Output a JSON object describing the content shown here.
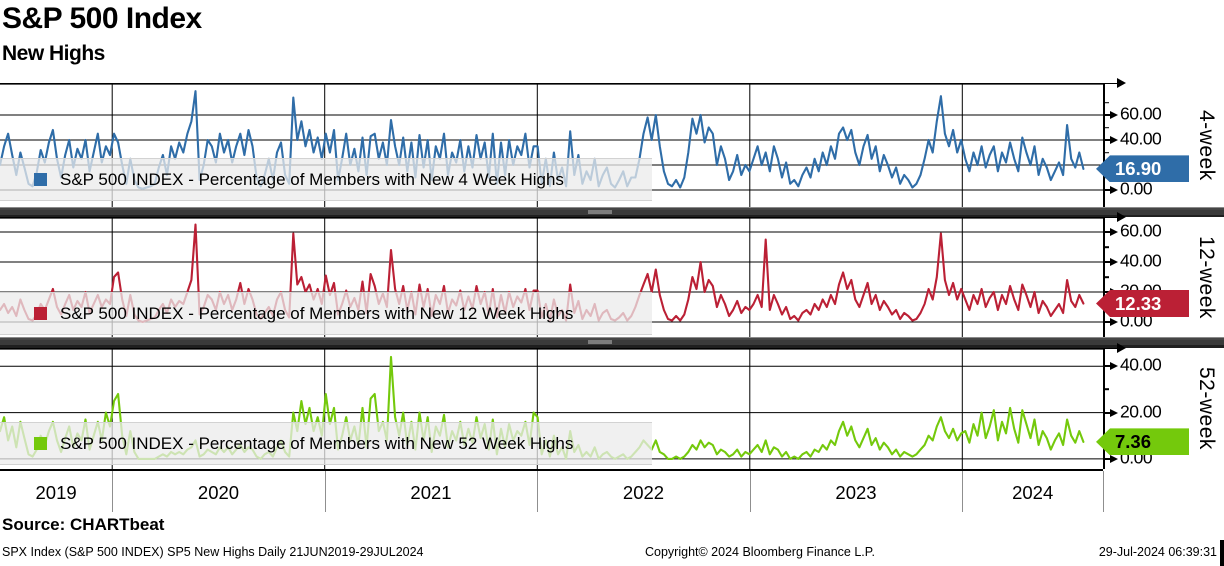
{
  "header": {
    "title": "S&P 500 Index",
    "subtitle": "New Highs"
  },
  "footer": {
    "source": "Source: CHARTbeat",
    "left": "SPX Index (S&P 500 INDEX) SP5 New Highs  Daily 21JUN2019-29JUL2024",
    "center": "Copyright© 2024 Bloomberg Finance L.P.",
    "right": "29-Jul-2024 06:39:31"
  },
  "chart_data": {
    "type": "line",
    "title": "S&P 500 Index",
    "subtitle": "New Highs",
    "x_axis": {
      "xlim": [
        2019.472,
        2024.662
      ],
      "start_year": 2019.472,
      "step_days": 7,
      "tick_years": [
        2020,
        2021,
        2022,
        2023,
        2024
      ],
      "labels": [
        "2019",
        "2020",
        "2021",
        "2022",
        "2023",
        "2024"
      ],
      "range_label": "Daily 21JUN2019-29JUL2024"
    },
    "panels": [
      {
        "name": "4-week",
        "side_label": "4-week",
        "legend": "S&P 500 INDEX - Percentage of Members with New 4 Week Highs",
        "color": "#2f6da8",
        "badge_text_color": "#ffffff",
        "last_value": 16.9,
        "last_value_label": "16.90",
        "ylim": [
          -13.6,
          85.6
        ],
        "yticks": [
          0,
          20,
          40,
          60
        ],
        "values": [
          20,
          35,
          45,
          28,
          12,
          30,
          18,
          5,
          3,
          14,
          32,
          22,
          38,
          48,
          25,
          10,
          28,
          40,
          18,
          33,
          25,
          40,
          15,
          30,
          45,
          22,
          35,
          28,
          45,
          38,
          20,
          5,
          25,
          8,
          2,
          1,
          2,
          3,
          5,
          18,
          28,
          12,
          35,
          25,
          38,
          30,
          45,
          55,
          79,
          8,
          20,
          40,
          35,
          22,
          45,
          30,
          40,
          22,
          35,
          45,
          28,
          48,
          35,
          10,
          3,
          12,
          25,
          8,
          30,
          38,
          12,
          5,
          74,
          40,
          55,
          35,
          48,
          30,
          42,
          25,
          45,
          30,
          48,
          8,
          25,
          45,
          20,
          33,
          15,
          42,
          12,
          43,
          45,
          25,
          38,
          20,
          56,
          35,
          20,
          42,
          15,
          38,
          10,
          44,
          18,
          40,
          8,
          35,
          25,
          45,
          12,
          30,
          22,
          40,
          15,
          35,
          18,
          44,
          25,
          38,
          10,
          45,
          5,
          38,
          12,
          40,
          20,
          35,
          28,
          45,
          18,
          35,
          35,
          5,
          25,
          3,
          30,
          8,
          18,
          3,
          47,
          12,
          28,
          5,
          15,
          8,
          25,
          3,
          12,
          18,
          5,
          2,
          8,
          15,
          3,
          10,
          10,
          25,
          45,
          58,
          40,
          60,
          35,
          15,
          5,
          3,
          8,
          2,
          10,
          30,
          57,
          45,
          60,
          38,
          50,
          45,
          20,
          35,
          25,
          8,
          15,
          28,
          12,
          20,
          15,
          25,
          35,
          20,
          30,
          15,
          35,
          25,
          10,
          22,
          5,
          8,
          3,
          12,
          18,
          10,
          25,
          15,
          30,
          20,
          35,
          25,
          45,
          50,
          40,
          48,
          30,
          20,
          35,
          44,
          25,
          35,
          15,
          28,
          20,
          10,
          18,
          5,
          12,
          8,
          2,
          5,
          12,
          25,
          40,
          30,
          55,
          75,
          45,
          35,
          48,
          30,
          40,
          25,
          15,
          30,
          20,
          35,
          18,
          28,
          35,
          15,
          30,
          22,
          38,
          25,
          15,
          42,
          30,
          20,
          35,
          12,
          25,
          18,
          8,
          15,
          22,
          12,
          52,
          25,
          18,
          30,
          16.9
        ]
      },
      {
        "name": "12-week",
        "side_label": "12-week",
        "legend": "S&P 500 INDEX - Percentage of Members with New 12 Week Highs",
        "color": "#bb2035",
        "badge_text_color": "#ffffff",
        "last_value": 12.33,
        "last_value_label": "12.33",
        "ylim": [
          -10,
          70
        ],
        "yticks": [
          0,
          20,
          40,
          60
        ],
        "values": [
          8,
          12,
          6,
          10,
          4,
          15,
          8,
          2,
          1,
          5,
          12,
          8,
          15,
          22,
          10,
          5,
          12,
          18,
          8,
          14,
          10,
          20,
          6,
          12,
          18,
          10,
          15,
          12,
          30,
          33,
          15,
          4,
          18,
          5,
          1,
          0,
          1,
          2,
          3,
          8,
          12,
          6,
          15,
          10,
          14,
          12,
          20,
          28,
          65,
          5,
          10,
          18,
          15,
          8,
          20,
          12,
          18,
          8,
          15,
          26,
          12,
          22,
          15,
          5,
          2,
          6,
          10,
          4,
          15,
          20,
          8,
          3,
          59,
          25,
          30,
          20,
          25,
          15,
          22,
          12,
          31,
          18,
          26,
          5,
          12,
          21,
          10,
          16,
          8,
          27,
          6,
          32,
          24,
          12,
          19,
          10,
          48,
          22,
          12,
          24,
          8,
          20,
          5,
          25,
          10,
          22,
          4,
          18,
          12,
          24,
          6,
          15,
          11,
          21,
          8,
          17,
          9,
          24,
          12,
          20,
          5,
          22,
          3,
          18,
          6,
          20,
          10,
          17,
          13,
          22,
          8,
          21,
          21,
          3,
          12,
          1,
          15,
          4,
          8,
          1,
          25,
          6,
          14,
          2,
          8,
          4,
          12,
          1,
          6,
          8,
          2,
          1,
          3,
          6,
          1,
          4,
          10,
          18,
          25,
          32,
          20,
          35,
          18,
          8,
          2,
          1,
          4,
          1,
          5,
          15,
          30,
          22,
          40,
          20,
          28,
          24,
          10,
          18,
          12,
          4,
          8,
          14,
          6,
          10,
          8,
          12,
          18,
          10,
          55,
          8,
          18,
          12,
          5,
          10,
          2,
          4,
          1,
          6,
          8,
          5,
          12,
          8,
          15,
          10,
          18,
          12,
          25,
          33,
          22,
          28,
          15,
          10,
          18,
          26,
          12,
          18,
          8,
          14,
          10,
          5,
          8,
          2,
          6,
          4,
          1,
          2,
          6,
          12,
          22,
          15,
          30,
          59,
          28,
          18,
          26,
          15,
          22,
          15,
          8,
          18,
          12,
          22,
          10,
          16,
          20,
          8,
          18,
          12,
          24,
          15,
          8,
          25,
          18,
          10,
          20,
          6,
          14,
          10,
          4,
          8,
          12,
          6,
          28,
          14,
          10,
          18,
          12.33
        ]
      },
      {
        "name": "52-week",
        "side_label": "52-week",
        "legend": "S&P 500 INDEX - Percentage of Members with New 52 Week Highs",
        "color": "#74c90c",
        "badge_text_color": "#000000",
        "last_value": 7.36,
        "last_value_label": "7.36",
        "ylim": [
          -4.35,
          47.85
        ],
        "yticks": [
          0,
          20,
          40
        ],
        "values": [
          12,
          18,
          8,
          14,
          5,
          16,
          9,
          2,
          1,
          4,
          10,
          6,
          12,
          16,
          8,
          3,
          9,
          14,
          5,
          11,
          8,
          17,
          4,
          10,
          16,
          8,
          20,
          14,
          25,
          28,
          10,
          2,
          12,
          3,
          0,
          0,
          0,
          0,
          0,
          1,
          2,
          1,
          3,
          2,
          3,
          2,
          4,
          5,
          8,
          1,
          2,
          4,
          3,
          2,
          5,
          3,
          5,
          2,
          4,
          6,
          3,
          5,
          4,
          1,
          0,
          2,
          3,
          1,
          5,
          8,
          3,
          1,
          20,
          12,
          25,
          15,
          22,
          12,
          18,
          10,
          28,
          15,
          22,
          4,
          10,
          18,
          8,
          14,
          6,
          22,
          5,
          26,
          28,
          12,
          16,
          8,
          44,
          18,
          10,
          20,
          6,
          16,
          4,
          20,
          8,
          18,
          3,
          14,
          10,
          19,
          5,
          12,
          8,
          16,
          6,
          13,
          7,
          18,
          9,
          15,
          4,
          17,
          2,
          13,
          5,
          15,
          8,
          12,
          10,
          16,
          6,
          20,
          18,
          2,
          8,
          1,
          10,
          2,
          5,
          0,
          12,
          3,
          6,
          1,
          3,
          1,
          5,
          0,
          2,
          3,
          1,
          0,
          1,
          2,
          0,
          1,
          3,
          5,
          8,
          6,
          4,
          8,
          3,
          2,
          0,
          0,
          1,
          0,
          1,
          3,
          6,
          4,
          8,
          5,
          7,
          6,
          2,
          4,
          3,
          1,
          2,
          4,
          1,
          3,
          2,
          4,
          6,
          3,
          8,
          2,
          5,
          4,
          1,
          3,
          0,
          1,
          0,
          2,
          3,
          1,
          4,
          3,
          6,
          4,
          8,
          6,
          12,
          16,
          10,
          14,
          8,
          5,
          9,
          13,
          6,
          9,
          4,
          7,
          5,
          2,
          4,
          1,
          3,
          2,
          1,
          2,
          4,
          6,
          10,
          8,
          14,
          18,
          12,
          9,
          13,
          8,
          11,
          12,
          7,
          15,
          10,
          20,
          9,
          14,
          21,
          8,
          16,
          11,
          22,
          13,
          7,
          21,
          15,
          9,
          17,
          6,
          12,
          9,
          4,
          8,
          11,
          6,
          17,
          10,
          7,
          12,
          7.36
        ]
      }
    ]
  }
}
